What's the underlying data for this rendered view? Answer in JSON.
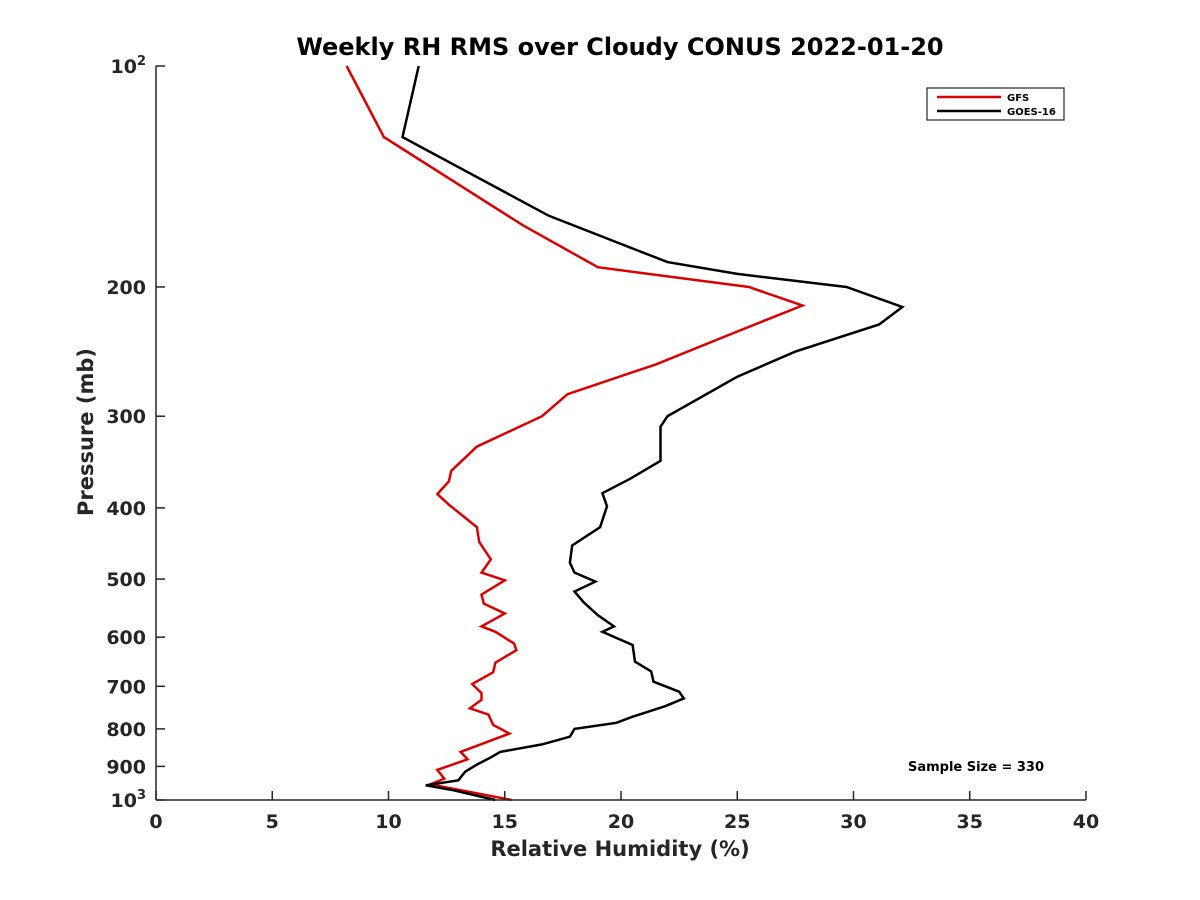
{
  "chart_data": {
    "type": "line",
    "title": "Weekly RH RMS over Cloudy CONUS 2022-01-20",
    "xlabel": "Relative Humidity (%)",
    "ylabel": "Pressure (mb)",
    "xlim": [
      0,
      40
    ],
    "ylim": [
      100,
      1000
    ],
    "y_scale": "log",
    "y_reversed": true,
    "grid": false,
    "legend_position": "top-right",
    "x_ticks": [
      {
        "value": 0,
        "label": "0"
      },
      {
        "value": 5,
        "label": "5"
      },
      {
        "value": 10,
        "label": "10"
      },
      {
        "value": 15,
        "label": "15"
      },
      {
        "value": 20,
        "label": "20"
      },
      {
        "value": 25,
        "label": "25"
      },
      {
        "value": 30,
        "label": "30"
      },
      {
        "value": 35,
        "label": "35"
      },
      {
        "value": 40,
        "label": "40"
      }
    ],
    "y_ticks": [
      {
        "value": 100,
        "base": "10",
        "exp": "2"
      },
      {
        "value": 200,
        "base": "200",
        "exp": ""
      },
      {
        "value": 300,
        "base": "300",
        "exp": ""
      },
      {
        "value": 400,
        "base": "400",
        "exp": ""
      },
      {
        "value": 500,
        "base": "500",
        "exp": ""
      },
      {
        "value": 600,
        "base": "600",
        "exp": ""
      },
      {
        "value": 700,
        "base": "700",
        "exp": ""
      },
      {
        "value": 800,
        "base": "800",
        "exp": ""
      },
      {
        "value": 900,
        "base": "900",
        "exp": ""
      },
      {
        "value": 1000,
        "base": "10",
        "exp": "3"
      }
    ],
    "series": [
      {
        "name": "GFS",
        "color": "#dd0000",
        "points": [
          [
            8.2,
            100
          ],
          [
            9.8,
            125
          ],
          [
            15.8,
            165
          ],
          [
            19.0,
            188
          ],
          [
            25.5,
            200
          ],
          [
            27.8,
            212
          ],
          [
            25.0,
            230
          ],
          [
            21.5,
            255
          ],
          [
            17.7,
            280
          ],
          [
            16.6,
            300
          ],
          [
            13.8,
            330
          ],
          [
            12.7,
            356
          ],
          [
            12.6,
            368
          ],
          [
            12.1,
            383
          ],
          [
            12.6,
            396
          ],
          [
            13.8,
            425
          ],
          [
            13.9,
            445
          ],
          [
            14.4,
            470
          ],
          [
            14.0,
            490
          ],
          [
            15.0,
            502
          ],
          [
            14.0,
            525
          ],
          [
            14.1,
            540
          ],
          [
            15.0,
            557
          ],
          [
            14.0,
            580
          ],
          [
            14.6,
            590
          ],
          [
            15.4,
            612
          ],
          [
            15.5,
            625
          ],
          [
            14.6,
            650
          ],
          [
            14.5,
            670
          ],
          [
            13.6,
            695
          ],
          [
            14.0,
            715
          ],
          [
            14.0,
            730
          ],
          [
            13.5,
            750
          ],
          [
            14.3,
            765
          ],
          [
            14.5,
            790
          ],
          [
            15.2,
            812
          ],
          [
            14.4,
            830
          ],
          [
            13.1,
            860
          ],
          [
            13.4,
            880
          ],
          [
            12.1,
            910
          ],
          [
            12.4,
            935
          ],
          [
            11.8,
            952
          ],
          [
            15.3,
            1000
          ]
        ]
      },
      {
        "name": "GOES-16",
        "color": "#000000",
        "points": [
          [
            11.3,
            100
          ],
          [
            10.6,
            125
          ],
          [
            16.9,
            160
          ],
          [
            22.0,
            185
          ],
          [
            25.0,
            192
          ],
          [
            29.7,
            200
          ],
          [
            32.1,
            213
          ],
          [
            31.1,
            225
          ],
          [
            27.5,
            245
          ],
          [
            25.0,
            265
          ],
          [
            22.0,
            300
          ],
          [
            21.7,
            310
          ],
          [
            21.7,
            345
          ],
          [
            20.4,
            365
          ],
          [
            19.2,
            382
          ],
          [
            19.4,
            398
          ],
          [
            19.1,
            425
          ],
          [
            17.9,
            450
          ],
          [
            17.8,
            475
          ],
          [
            18.0,
            490
          ],
          [
            18.9,
            504
          ],
          [
            18.0,
            520
          ],
          [
            18.4,
            538
          ],
          [
            19.0,
            560
          ],
          [
            19.7,
            580
          ],
          [
            19.2,
            590
          ],
          [
            20.5,
            615
          ],
          [
            20.6,
            648
          ],
          [
            21.3,
            668
          ],
          [
            21.4,
            690
          ],
          [
            22.5,
            712
          ],
          [
            22.7,
            727
          ],
          [
            21.9,
            745
          ],
          [
            20.5,
            770
          ],
          [
            19.8,
            785
          ],
          [
            18.0,
            800
          ],
          [
            17.8,
            820
          ],
          [
            16.6,
            840
          ],
          [
            14.8,
            860
          ],
          [
            14.4,
            875
          ],
          [
            13.8,
            895
          ],
          [
            13.3,
            915
          ],
          [
            13.0,
            940
          ],
          [
            11.6,
            955
          ],
          [
            12.8,
            970
          ],
          [
            14.6,
            1000
          ]
        ]
      }
    ],
    "annotation": "Sample Size = 330"
  }
}
